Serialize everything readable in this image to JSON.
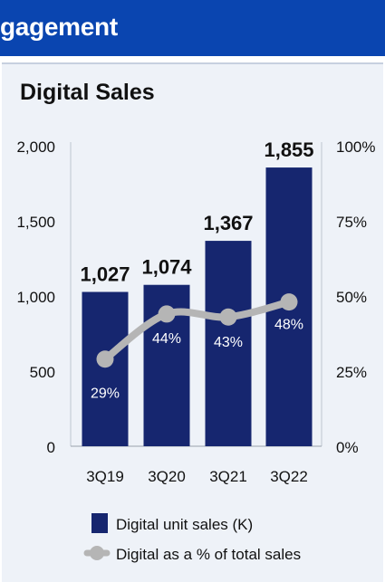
{
  "header": {
    "banner_title": "gagement"
  },
  "colors": {
    "banner": "#0a45b0",
    "bars": "#16266f",
    "line": "#b5b5b5",
    "panel": "#eef2f8"
  },
  "chart_data": {
    "type": "bar",
    "title": "Digital Sales",
    "categories": [
      "3Q19",
      "3Q20",
      "3Q21",
      "3Q22"
    ],
    "series": [
      {
        "name": "Digital unit sales (K)",
        "type": "bar",
        "axis": "left",
        "values": [
          1027,
          1074,
          1367,
          1855
        ],
        "value_labels": [
          "1,027",
          "1,074",
          "1,367",
          "1,855"
        ]
      },
      {
        "name": "Digital as a % of total sales",
        "type": "line",
        "axis": "right",
        "values": [
          29,
          44,
          43,
          48
        ],
        "value_labels": [
          "29%",
          "44%",
          "43%",
          "48%"
        ]
      }
    ],
    "y_left": {
      "range": [
        0,
        2000
      ],
      "ticks": [
        0,
        500,
        1000,
        1500,
        2000
      ],
      "tick_labels": [
        "0",
        "500",
        "1,000",
        "1,500",
        "2,000"
      ]
    },
    "y_right": {
      "range": [
        0,
        100
      ],
      "ticks": [
        0,
        25,
        50,
        75,
        100
      ],
      "tick_labels": [
        "0%",
        "25%",
        "50%",
        "75%",
        "100%"
      ]
    },
    "grid": false,
    "legend": {
      "placement": "bottom-center",
      "entries": [
        "Digital unit sales (K)",
        "Digital as a % of total sales"
      ]
    }
  }
}
